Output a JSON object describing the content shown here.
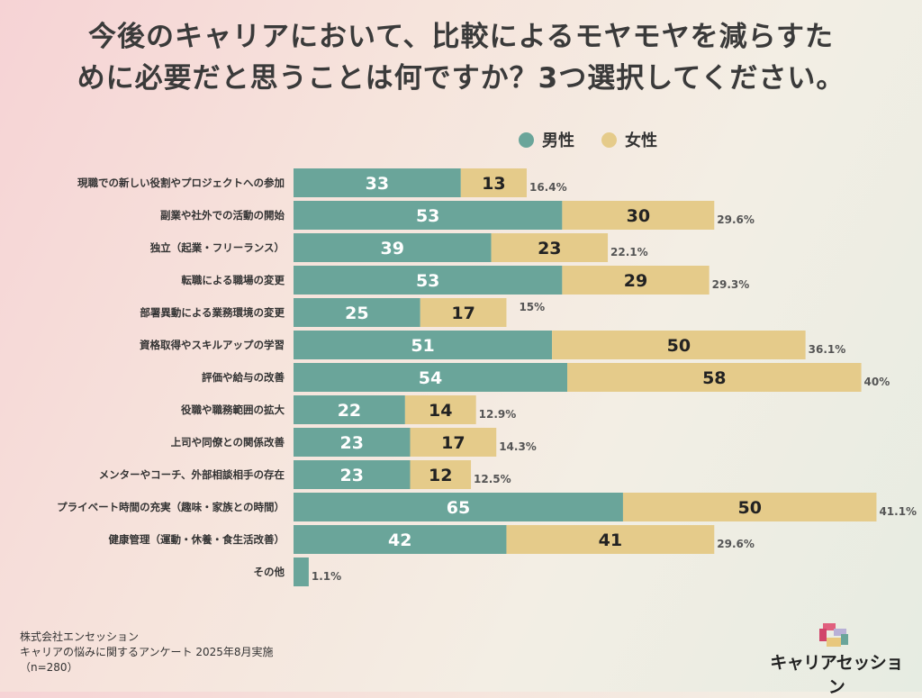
{
  "title_line1": "今後のキャリアにおいて、比較によるモヤモヤを減らすた",
  "title_line2": "めに必要だと思うことは何ですか？3つ選択してください。",
  "colors": {
    "male": "#6aa59a",
    "female": "#e5cb8a"
  },
  "chart_data": {
    "type": "bar",
    "orientation": "horizontal",
    "stacked": true,
    "legend_position": "top-right",
    "series": [
      {
        "name": "男性",
        "values": [
          33,
          53,
          39,
          53,
          25,
          51,
          54,
          22,
          23,
          23,
          65,
          42,
          3
        ]
      },
      {
        "name": "女性",
        "values": [
          13,
          30,
          23,
          29,
          17,
          50,
          58,
          14,
          17,
          12,
          50,
          41,
          0
        ]
      }
    ],
    "categories": [
      "現職での新しい役割やプロジェクトへの参加",
      "副業や社外での活動の開始",
      "独立（起業・フリーランス）",
      "転職による職場の変更",
      "部署異動による業務環境の変更",
      "資格取得やスキルアップの学習",
      "評価や給与の改善",
      "役職や職務範囲の拡大",
      "上司や同僚との関係改善",
      "メンターやコーチ、外部相談相手の存在",
      "プライベート時間の充実（趣味・家族との時間）",
      "健康管理（運動・休養・食生活改善）",
      "その他"
    ],
    "male_labels": [
      "33",
      "53",
      "39",
      "53",
      "25",
      "51",
      "54",
      "22",
      "23",
      "23",
      "65",
      "42",
      ""
    ],
    "female_labels": [
      "13",
      "30",
      "23",
      "29",
      "17",
      "50",
      "58",
      "14",
      "17",
      "12",
      "50",
      "41",
      ""
    ],
    "percent_labels": [
      "16.4%",
      "29.6%",
      "22.1%",
      "29.3%",
      "15%",
      "36.1%",
      "40%",
      "12.9%",
      "14.3%",
      "12.5%",
      "41.1%",
      "29.6%",
      "1.1%"
    ],
    "xlim": [
      0,
      115
    ]
  },
  "footer": {
    "line1": "株式会社エンセッション",
    "line2": "キャリアの悩みに関するアンケート 2025年8月実施",
    "line3": "（n=280）"
  },
  "logo": {
    "text": "キャリアセッション"
  }
}
